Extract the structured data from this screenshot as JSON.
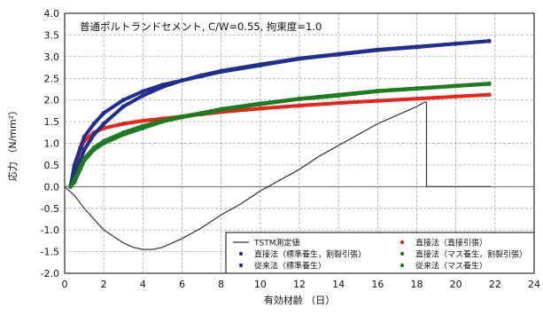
{
  "chart_data": {
    "type": "line",
    "title": "",
    "annotation": "普通ポルトランドセメント, C/W=0.55, 拘束度=1.0",
    "xlabel": "有効材齢 （日）",
    "ylabel": "応力 （N/mm²）",
    "xlim": [
      0,
      24
    ],
    "ylim": [
      -2.0,
      4.0
    ],
    "x_ticks": [
      0,
      2,
      4,
      6,
      8,
      10,
      12,
      14,
      16,
      18,
      20,
      22,
      24
    ],
    "y_ticks": [
      -2.0,
      -1.5,
      -1.0,
      -0.5,
      0.0,
      0.5,
      1.0,
      1.5,
      2.0,
      2.5,
      3.0,
      3.5,
      4.0
    ],
    "x_tick_labels": [
      "0",
      "2",
      "4",
      "6",
      "8",
      "10",
      "12",
      "14",
      "16",
      "18",
      "20",
      "22",
      "24"
    ],
    "y_tick_labels": [
      "-2.0",
      "-1.5",
      "-1.0",
      "-0.5",
      "0.0",
      "0.5",
      "1.0",
      "1.5",
      "2.0",
      "2.5",
      "3.0",
      "3.5",
      "4.0"
    ],
    "grid": true,
    "legend_position": "bottom-right",
    "series": [
      {
        "name": "TSTM測定値",
        "color": "#333333",
        "style": "line",
        "x": [
          0,
          0.5,
          1,
          1.5,
          2,
          2.5,
          3,
          3.5,
          4,
          4.5,
          5,
          6,
          7,
          8,
          9,
          10,
          11,
          12,
          13,
          14,
          15,
          16,
          17,
          17.5,
          18,
          18.4,
          18.5,
          18.5,
          19,
          20,
          21,
          21.8
        ],
        "y": [
          0,
          -0.2,
          -0.5,
          -0.75,
          -1.0,
          -1.15,
          -1.3,
          -1.4,
          -1.45,
          -1.45,
          -1.4,
          -1.2,
          -0.95,
          -0.65,
          -0.4,
          -0.1,
          0.15,
          0.4,
          0.7,
          0.95,
          1.2,
          1.45,
          1.65,
          1.75,
          1.85,
          1.95,
          1.95,
          0.0,
          0.0,
          0.0,
          0.0,
          0.0
        ]
      },
      {
        "name": "直接法（直接引張）",
        "color": "#e8241b",
        "style": "markers",
        "x": [
          0.3,
          0.5,
          0.8,
          1,
          1.5,
          2,
          3,
          4,
          5,
          6,
          7,
          8,
          10,
          12,
          14,
          16,
          18,
          20,
          21.7
        ],
        "y": [
          0.0,
          0.45,
          0.85,
          1.05,
          1.25,
          1.35,
          1.45,
          1.52,
          1.57,
          1.62,
          1.67,
          1.72,
          1.8,
          1.87,
          1.93,
          1.98,
          2.03,
          2.08,
          2.12
        ]
      },
      {
        "name": "直接法（標準養生，割裂引張）",
        "color": "#1f2e8f",
        "style": "markers",
        "x": [
          0.3,
          0.5,
          0.8,
          1,
          1.5,
          2,
          3,
          4,
          5,
          6,
          7,
          8,
          10,
          12,
          14,
          16,
          18,
          20,
          21.7
        ],
        "y": [
          0.0,
          0.5,
          0.9,
          1.15,
          1.45,
          1.7,
          2.0,
          2.2,
          2.35,
          2.45,
          2.55,
          2.65,
          2.8,
          2.95,
          3.05,
          3.15,
          3.22,
          3.3,
          3.36
        ]
      },
      {
        "name": "直接法（マス養生，割裂引張）",
        "color": "#1e7b1e",
        "style": "markers",
        "x": [
          0.3,
          0.5,
          0.8,
          1,
          1.5,
          2,
          3,
          4,
          5,
          6,
          7,
          8,
          10,
          12,
          14,
          16,
          18,
          20,
          21.7
        ],
        "y": [
          0.0,
          0.1,
          0.4,
          0.6,
          0.85,
          1.0,
          1.2,
          1.35,
          1.5,
          1.6,
          1.68,
          1.77,
          1.9,
          2.02,
          2.1,
          2.2,
          2.26,
          2.32,
          2.37
        ]
      },
      {
        "name": "従来法（標準養生）",
        "color": "#1f2e8f",
        "style": "markers",
        "x": [
          0.3,
          0.5,
          0.8,
          1,
          1.5,
          2,
          3,
          4,
          5,
          6,
          7,
          8,
          10,
          12,
          14,
          16,
          18,
          20,
          21.7
        ],
        "y": [
          0.0,
          0.25,
          0.6,
          0.85,
          1.2,
          1.45,
          1.85,
          2.1,
          2.3,
          2.45,
          2.57,
          2.67,
          2.82,
          2.96,
          3.06,
          3.16,
          3.23,
          3.3,
          3.36
        ]
      },
      {
        "name": "従来法（マス養生）",
        "color": "#1e7b1e",
        "style": "markers",
        "x": [
          0.3,
          0.5,
          0.8,
          1,
          1.5,
          2,
          3,
          4,
          5,
          6,
          7,
          8,
          10,
          12,
          14,
          16,
          18,
          20,
          21.7
        ],
        "y": [
          0.0,
          0.15,
          0.45,
          0.65,
          0.9,
          1.05,
          1.25,
          1.4,
          1.52,
          1.62,
          1.7,
          1.79,
          1.92,
          2.03,
          2.12,
          2.21,
          2.27,
          2.33,
          2.38
        ]
      }
    ]
  }
}
